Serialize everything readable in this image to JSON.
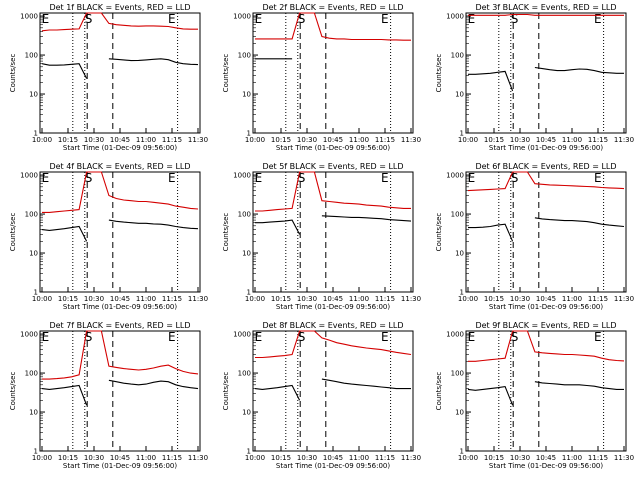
{
  "y_axis_label": "Counts/sec",
  "x_axis_label": "Start Time (01-Dec-09 09:56:00)",
  "x_ticks": [
    "10:00",
    "10:15",
    "10:30",
    "10:45",
    "11:00",
    "11:15",
    "11:30"
  ],
  "y_ticks": [
    "1",
    "10",
    "100",
    "1000"
  ],
  "colors": {
    "events": "#000000",
    "lld": "#d40000"
  },
  "chart_data": [
    {
      "type": "line",
      "title": "Det 1f BLACK = Events, RED = LLD",
      "markers": [
        "E",
        "S",
        "E"
      ],
      "yscale": "log",
      "ylim": [
        1,
        1200
      ],
      "lld": [
        420,
        440,
        440,
        450,
        460,
        470,
        1200,
        1200,
        1200,
        650,
        600,
        580,
        560,
        550,
        560,
        560,
        550,
        540,
        500,
        470,
        460,
        460
      ],
      "events": [
        60,
        55,
        55,
        56,
        58,
        60,
        25,
        null,
        null,
        80,
        78,
        75,
        72,
        73,
        75,
        78,
        80,
        76,
        65,
        60,
        58,
        57
      ]
    },
    {
      "type": "line",
      "title": "Det 2f BLACK = Events, RED = LLD",
      "markers": [
        "E",
        "S",
        "E"
      ],
      "yscale": "log",
      "ylim": [
        1,
        1200
      ],
      "lld": [
        260,
        260,
        260,
        260,
        260,
        260,
        1200,
        1200,
        1200,
        300,
        270,
        260,
        260,
        250,
        250,
        250,
        250,
        250,
        245,
        245,
        240,
        240
      ],
      "events": [
        80,
        80,
        80,
        80,
        80,
        80,
        null,
        null,
        null,
        null,
        null,
        null,
        null,
        null,
        null,
        null,
        null,
        null,
        null,
        null,
        null,
        null
      ]
    },
    {
      "type": "line",
      "title": "Det 3f BLACK = Events, RED = LLD",
      "markers": [
        "E",
        "S",
        "E"
      ],
      "yscale": "log",
      "ylim": [
        1,
        1200
      ],
      "lld": [
        1050,
        1050,
        1050,
        1050,
        1050,
        1050,
        1100,
        1100,
        1100,
        1050,
        1050,
        1050,
        1050,
        1050,
        1050,
        1050,
        1050,
        1050,
        1050,
        1050,
        1050,
        1050
      ],
      "events": [
        32,
        32,
        33,
        34,
        36,
        38,
        12,
        null,
        null,
        48,
        45,
        42,
        40,
        40,
        42,
        44,
        43,
        40,
        36,
        35,
        34,
        34
      ]
    },
    {
      "type": "line",
      "title": "Det 4f BLACK = Events, RED = LLD",
      "markers": [
        "E",
        "S",
        "E"
      ],
      "yscale": "log",
      "ylim": [
        1,
        1200
      ],
      "lld": [
        110,
        110,
        115,
        120,
        125,
        130,
        1200,
        1200,
        1200,
        300,
        250,
        230,
        220,
        210,
        210,
        200,
        190,
        180,
        160,
        150,
        140,
        135
      ],
      "events": [
        40,
        38,
        40,
        42,
        45,
        48,
        20,
        null,
        null,
        70,
        65,
        62,
        60,
        58,
        58,
        56,
        55,
        52,
        48,
        45,
        43,
        42
      ]
    },
    {
      "type": "line",
      "title": "Det 5f BLACK = Events, RED = LLD",
      "markers": [
        "E",
        "S",
        "E"
      ],
      "yscale": "log",
      "ylim": [
        1,
        1200
      ],
      "lld": [
        120,
        120,
        125,
        130,
        135,
        140,
        1200,
        1200,
        1200,
        220,
        210,
        200,
        190,
        185,
        180,
        170,
        165,
        160,
        150,
        145,
        140,
        140
      ],
      "events": [
        60,
        60,
        62,
        64,
        66,
        70,
        30,
        null,
        null,
        90,
        88,
        86,
        84,
        82,
        82,
        80,
        78,
        76,
        72,
        70,
        68,
        66
      ]
    },
    {
      "type": "line",
      "title": "Det 6f BLACK = Events, RED = LLD",
      "markers": [
        "E",
        "S",
        "E"
      ],
      "yscale": "log",
      "ylim": [
        1,
        1200
      ],
      "lld": [
        400,
        410,
        420,
        430,
        440,
        450,
        1200,
        1200,
        1200,
        600,
        580,
        560,
        550,
        540,
        530,
        520,
        510,
        500,
        480,
        470,
        460,
        450
      ],
      "events": [
        45,
        45,
        46,
        48,
        52,
        55,
        20,
        null,
        null,
        80,
        75,
        72,
        70,
        68,
        68,
        66,
        64,
        60,
        55,
        52,
        50,
        48
      ]
    },
    {
      "type": "line",
      "title": "Det 7f BLACK = Events, RED = LLD",
      "markers": [
        "E",
        "S",
        "E"
      ],
      "yscale": "log",
      "ylim": [
        1,
        1200
      ],
      "lld": [
        70,
        70,
        72,
        75,
        80,
        90,
        1200,
        1200,
        1200,
        150,
        140,
        130,
        125,
        120,
        125,
        135,
        150,
        160,
        130,
        110,
        100,
        95
      ],
      "events": [
        40,
        38,
        40,
        42,
        45,
        48,
        15,
        null,
        null,
        65,
        60,
        55,
        52,
        50,
        52,
        58,
        62,
        60,
        50,
        45,
        42,
        40
      ]
    },
    {
      "type": "line",
      "title": "Det 8f BLACK = Events, RED = LLD",
      "markers": [
        "E",
        "S",
        "E"
      ],
      "yscale": "log",
      "ylim": [
        1,
        1200
      ],
      "lld": [
        250,
        250,
        260,
        270,
        280,
        300,
        1200,
        1200,
        1200,
        800,
        700,
        600,
        550,
        500,
        470,
        440,
        420,
        400,
        370,
        340,
        320,
        300
      ],
      "events": [
        40,
        38,
        40,
        42,
        45,
        48,
        20,
        null,
        null,
        70,
        65,
        60,
        55,
        52,
        50,
        48,
        46,
        44,
        42,
        40,
        40,
        40
      ]
    },
    {
      "type": "line",
      "title": "Det 9f BLACK = Events, RED = LLD",
      "markers": [
        "E",
        "S",
        "E"
      ],
      "yscale": "log",
      "ylim": [
        1,
        1200
      ],
      "lld": [
        200,
        200,
        210,
        220,
        230,
        240,
        1200,
        1200,
        1200,
        350,
        330,
        320,
        310,
        300,
        300,
        290,
        280,
        270,
        240,
        220,
        210,
        205
      ],
      "events": [
        38,
        36,
        38,
        40,
        42,
        45,
        15,
        null,
        null,
        60,
        56,
        54,
        52,
        50,
        50,
        50,
        48,
        46,
        42,
        40,
        38,
        38
      ]
    }
  ]
}
